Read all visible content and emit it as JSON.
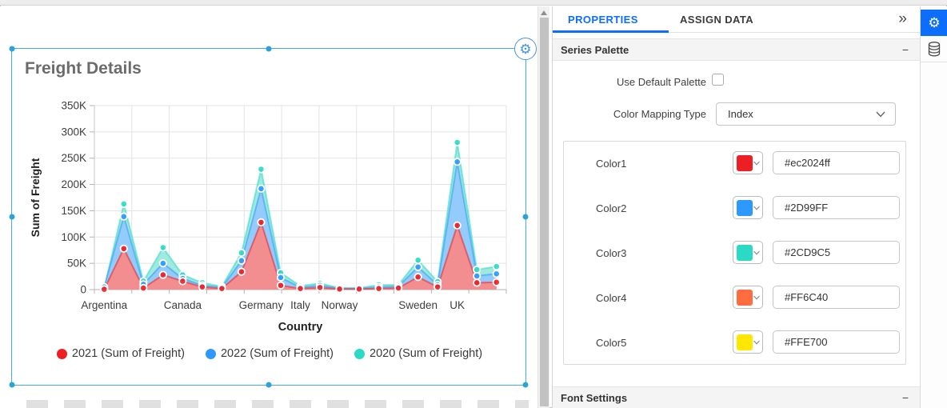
{
  "ui_colors": {
    "accent_blue": "#0d6efd",
    "selection_blue": "#45acdb",
    "panel_header_bg": "#f4f4f4"
  },
  "icons": {
    "widget_gear_glyph": "⚙",
    "toolbar_gear_glyph": "⚙",
    "collapse_glyph": "»",
    "section_minus_glyph": "−"
  },
  "canvas": {
    "widget_title": "Freight Details"
  },
  "chart_data": {
    "type": "area",
    "title": "Freight Details",
    "xlabel": "Country",
    "ylabel": "Sum of Freight",
    "ylim": [
      0,
      350000
    ],
    "grid": true,
    "legend_position": "bottom",
    "yticks": {
      "values": [
        0,
        50000,
        100000,
        150000,
        200000,
        250000,
        300000,
        350000
      ],
      "labels": [
        "0",
        "50K",
        "100K",
        "150K",
        "200K",
        "250K",
        "300K",
        "350K"
      ]
    },
    "categories": [
      "Argentina",
      "",
      "",
      "",
      "Canada",
      "",
      "",
      "",
      "Germany",
      "",
      "Italy",
      "",
      "Norway",
      "",
      "",
      "",
      "Sweden",
      "",
      "UK",
      "",
      ""
    ],
    "series": [
      {
        "name": "2021 (Sum of Freight)",
        "color": "#ec2024",
        "area_fill": "#F28E8F",
        "values": [
          600,
          78000,
          3000,
          28000,
          16000,
          5000,
          2000,
          34000,
          128000,
          8000,
          2000,
          4000,
          1000,
          1000,
          2000,
          3000,
          24000,
          5000,
          122000,
          13000,
          14000
        ]
      },
      {
        "name": "2022 (Sum of Freight)",
        "color": "#2D99FF",
        "area_fill": "#92CBFC",
        "values": [
          5000,
          139000,
          10000,
          50000,
          21000,
          8000,
          4000,
          55000,
          192000,
          23000,
          4000,
          8000,
          2000,
          2000,
          5000,
          6000,
          43000,
          9000,
          243000,
          26000,
          30000
        ]
      },
      {
        "name": "2020 (Sum of Freight)",
        "color": "#2CD9C5",
        "area_fill": "#9FE9DE",
        "values": [
          2000,
          163000,
          16000,
          80000,
          28000,
          13000,
          6000,
          70000,
          229000,
          32000,
          7000,
          12000,
          3000,
          3000,
          9000,
          9000,
          56000,
          15000,
          280000,
          38000,
          44000
        ]
      }
    ]
  },
  "properties_panel": {
    "tabs": [
      {
        "label": "PROPERTIES",
        "active": true
      },
      {
        "label": "ASSIGN DATA",
        "active": false
      }
    ],
    "series_palette": {
      "title": "Series Palette",
      "use_default_palette_label": "Use Default Palette",
      "use_default_palette_checked": false,
      "color_mapping_type_label": "Color Mapping Type",
      "color_mapping_type_value": "Index",
      "colors": [
        {
          "label": "Color1",
          "color": "#ec2024",
          "value": "#ec2024ff"
        },
        {
          "label": "Color2",
          "color": "#2D99FF",
          "value": "#2D99FF"
        },
        {
          "label": "Color3",
          "color": "#2CD9C5",
          "value": "#2CD9C5"
        },
        {
          "label": "Color4",
          "color": "#FF6C40",
          "value": "#FF6C40"
        },
        {
          "label": "Color5",
          "color": "#FFE700",
          "value": "#FFE700"
        }
      ]
    },
    "font_settings": {
      "title": "Font Settings"
    }
  },
  "right_toolbar": {
    "items": [
      {
        "name": "widget-settings",
        "icon": "gear",
        "active": true
      },
      {
        "name": "data-sources",
        "icon": "database",
        "active": false
      }
    ]
  }
}
